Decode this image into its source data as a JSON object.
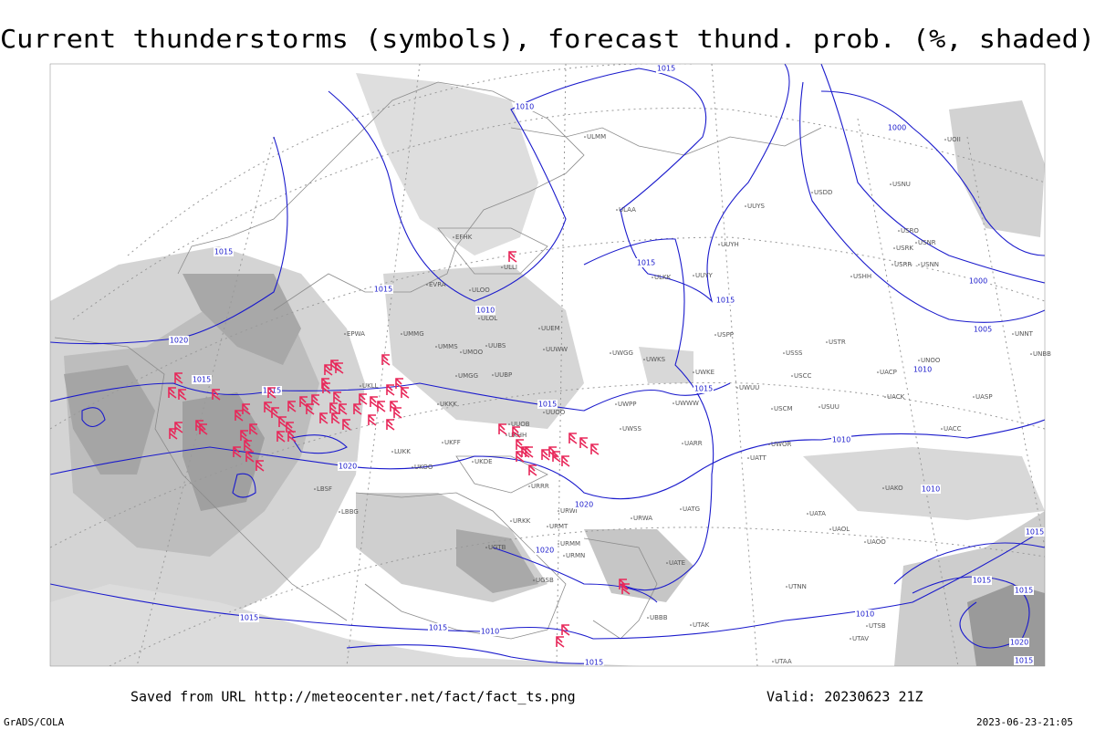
{
  "header": {
    "title": "Current thunderstorms (symbols), forecast thund. prob. (%, shaded)"
  },
  "isobar_labels": [
    "1015",
    "1010",
    "1015",
    "1015",
    "1010",
    "1020",
    "1015",
    "1015",
    "1020",
    "1015",
    "1015",
    "1015",
    "1015",
    "1010",
    "1010",
    "1010",
    "1005",
    "1000",
    "1000",
    "1020",
    "1020",
    "1015",
    "1015",
    "1010",
    "1015",
    "1010",
    "1015",
    "1015",
    "1015",
    "1020",
    "1015"
  ],
  "stations": [
    "ULLI",
    "ULOO",
    "EFHK",
    "EVRA",
    "ULOL",
    "EPWA",
    "UMMG",
    "UMMS",
    "UMOO",
    "UUBS",
    "UUEM",
    "UUWW",
    "UMGG",
    "UUBP",
    "UKLL",
    "UKKK",
    "UUOO",
    "UUOB",
    "UKHH",
    "UKDE",
    "UKFF",
    "LUKK",
    "UKOO",
    "LBSF",
    "LBBG",
    "URRR",
    "URWI",
    "URKK",
    "URMT",
    "URMM",
    "URMN",
    "UGTB",
    "UGSB",
    "UBBB",
    "UTAK",
    "UATE",
    "UATG",
    "URWA",
    "UARR",
    "UWWW",
    "UWKE",
    "UWKS",
    "UWGG",
    "UWPP",
    "UWSS",
    "UWUU",
    "UUYS",
    "UUYH",
    "UUYY",
    "ULKK",
    "ULAA",
    "USCM",
    "USUU",
    "USCC",
    "USSS",
    "USTR",
    "USPP",
    "UACP",
    "UACK",
    "UASP",
    "UACC",
    "UATT",
    "UWOR",
    "UAKO",
    "UATA",
    "UAOL",
    "UAOO",
    "UTNN",
    "UTAV",
    "UTSB",
    "UTAA",
    "USRR",
    "USRK",
    "USRO",
    "USNR",
    "USNN",
    "USHH",
    "USDD",
    "USNU",
    "UNNT",
    "UNBB",
    "UNOO",
    "UOII",
    "ULMM"
  ],
  "footer": {
    "source": "Saved from URL http://meteocenter.net/fact/fact_ts.png",
    "valid": "Valid: 20230623 21Z",
    "software": "GrADS/COLA",
    "timestamp": "2023-06-23-21:05"
  }
}
